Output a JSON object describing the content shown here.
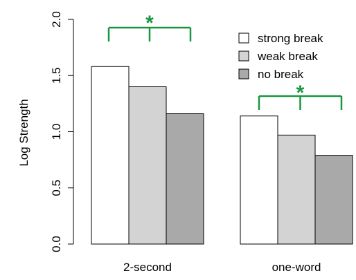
{
  "chart_data": {
    "type": "bar",
    "title": "",
    "xlabel": "",
    "ylabel": "Log Strength",
    "ylim": [
      0,
      2.0
    ],
    "yticks": [
      "0.0",
      "0.5",
      "1.0",
      "1.5",
      "2.0"
    ],
    "grid": false,
    "categories": [
      "2-second",
      "one-word"
    ],
    "series": [
      {
        "name": "strong break",
        "color": "#ffffff",
        "values": [
          1.58,
          1.14
        ]
      },
      {
        "name": "weak break",
        "color": "#d3d3d3",
        "values": [
          1.4,
          0.97
        ]
      },
      {
        "name": "no break",
        "color": "#a9a9a9",
        "values": [
          1.16,
          0.79
        ]
      }
    ],
    "legend": {
      "placement": "top-right"
    },
    "annotations": [
      {
        "group": "2-second",
        "text": "*",
        "color": "#1a9641"
      },
      {
        "group": "one-word",
        "text": "*",
        "color": "#1a9641"
      }
    ]
  }
}
